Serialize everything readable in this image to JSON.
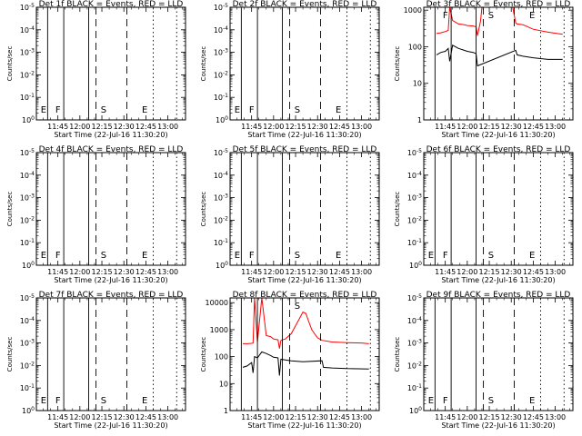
{
  "chart_data": [
    {
      "type": "line",
      "title": "Det 1f BLACK = Events, RED = LLD",
      "xlabel": "Start Time (22-Jul-16 11:30:20)",
      "ylabel": "Counts/sec",
      "x_ticks": [
        "11:45",
        "12:00",
        "12:15",
        "12:30",
        "12:45",
        "13:00"
      ],
      "y_ticks": [
        "10^0",
        "10^-1",
        "10^-2",
        "10^-3",
        "10^-4",
        "10^-5"
      ],
      "y_scale": "log",
      "markers": [
        "E",
        "F",
        "S",
        "E"
      ],
      "series": []
    },
    {
      "type": "line",
      "title": "Det 2f BLACK = Events, RED = LLD",
      "xlabel": "Start Time (22-Jul-16 11:30:20)",
      "ylabel": "Counts/sec",
      "x_ticks": [
        "11:45",
        "12:00",
        "12:15",
        "12:30",
        "12:45",
        "13:00"
      ],
      "y_ticks": [
        "10^0",
        "10^-1",
        "10^-2",
        "10^-3",
        "10^-4",
        "10^-5"
      ],
      "y_scale": "log",
      "markers": [
        "E",
        "F",
        "S",
        "E"
      ],
      "series": []
    },
    {
      "type": "line",
      "title": "Det 3f BLACK = Events, RED = LLD",
      "xlabel": "Start Time (22-Jul-16 11:30:20)",
      "ylabel": "Counts/sec",
      "x_ticks": [
        "11:45",
        "12:00",
        "12:15",
        "12:30",
        "12:45",
        "13:00"
      ],
      "y_ticks": [
        "1",
        "10",
        "100",
        "1000"
      ],
      "y_scale": "log",
      "ylim": [
        1,
        1200
      ],
      "markers": [
        "F",
        "S",
        "E"
      ],
      "series": [
        {
          "color": "#ff0000",
          "x": [
            "11:39",
            "11:42",
            "11:45",
            "11:47",
            "11:48",
            "11:50",
            "11:54",
            "11:58",
            "12:00",
            "12:04",
            "12:06",
            "12:07",
            "12:09",
            "12:10",
            "12:12",
            "12:20",
            "12:28",
            "12:31",
            "12:33",
            "12:34",
            "12:38",
            "12:45",
            "12:55",
            "13:05"
          ],
          "y": [
            230,
            240,
            260,
            280,
            1200,
            520,
            420,
            400,
            380,
            370,
            350,
            200,
            500,
            1200,
            1200,
            1200,
            1200,
            1200,
            450,
            420,
            400,
            300,
            250,
            220
          ]
        },
        {
          "color": "#000000",
          "x": [
            "11:39",
            "11:42",
            "11:45",
            "11:47",
            "11:48",
            "11:50",
            "11:54",
            "11:58",
            "12:00",
            "12:04",
            "12:06",
            "12:07",
            "12:33",
            "12:34",
            "12:38",
            "12:45",
            "12:55",
            "13:05"
          ],
          "y": [
            60,
            70,
            75,
            90,
            40,
            110,
            90,
            80,
            75,
            70,
            65,
            30,
            80,
            60,
            55,
            50,
            45,
            45
          ]
        }
      ]
    },
    {
      "type": "line",
      "title": "Det 4f BLACK = Events, RED = LLD",
      "xlabel": "Start Time (22-Jul-16 11:30:20)",
      "ylabel": "Counts/sec",
      "x_ticks": [
        "11:45",
        "12:00",
        "12:15",
        "12:30",
        "12:45",
        "13:00"
      ],
      "y_ticks": [
        "10^0",
        "10^-1",
        "10^-2",
        "10^-3",
        "10^-4",
        "10^-5"
      ],
      "y_scale": "log",
      "markers": [
        "E",
        "F",
        "S",
        "E"
      ],
      "series": []
    },
    {
      "type": "line",
      "title": "Det 5f BLACK = Events, RED = LLD",
      "xlabel": "Start Time (22-Jul-16 11:30:20)",
      "ylabel": "Counts/sec",
      "x_ticks": [
        "11:45",
        "12:00",
        "12:15",
        "12:30",
        "12:45",
        "13:00"
      ],
      "y_ticks": [
        "10^0",
        "10^-1",
        "10^-2",
        "10^-3",
        "10^-4",
        "10^-5"
      ],
      "y_scale": "log",
      "markers": [
        "E",
        "F",
        "S",
        "E"
      ],
      "series": []
    },
    {
      "type": "line",
      "title": "Det 6f BLACK = Events, RED = LLD",
      "xlabel": "Start Time (22-Jul-16 11:30:20)",
      "ylabel": "Counts/sec",
      "x_ticks": [
        "11:45",
        "12:00",
        "12:15",
        "12:30",
        "12:45",
        "13:00"
      ],
      "y_ticks": [
        "10^0",
        "10^-1",
        "10^-2",
        "10^-3",
        "10^-4",
        "10^-5"
      ],
      "y_scale": "log",
      "markers": [
        "E",
        "F",
        "S",
        "E"
      ],
      "series": []
    },
    {
      "type": "line",
      "title": "Det 7f BLACK = Events, RED = LLD",
      "xlabel": "Start Time (22-Jul-16 11:30:20)",
      "ylabel": "Counts/sec",
      "x_ticks": [
        "11:45",
        "12:00",
        "12:15",
        "12:30",
        "12:45",
        "13:00"
      ],
      "y_ticks": [
        "10^0",
        "10^-1",
        "10^-2",
        "10^-3",
        "10^-4",
        "10^-5"
      ],
      "y_scale": "log",
      "markers": [
        "E",
        "F",
        "S",
        "E"
      ],
      "series": []
    },
    {
      "type": "line",
      "title": "Det 8f BLACK = Events, RED = LLD",
      "xlabel": "Start Time (22-Jul-16 11:30:20)",
      "ylabel": "Counts/sec",
      "x_ticks": [
        "11:45",
        "12:00",
        "12:15",
        "12:30",
        "12:45",
        "13:00"
      ],
      "y_ticks": [
        "1",
        "10",
        "100",
        "1000",
        "10000"
      ],
      "y_scale": "log",
      "ylim": [
        1,
        15000
      ],
      "markers": [
        "S"
      ],
      "series": [
        {
          "color": "#ff0000",
          "x": [
            "11:39",
            "11:42",
            "11:45",
            "11:46",
            "11:47",
            "11:49",
            "11:52",
            "11:55",
            "11:58",
            "12:00",
            "12:03",
            "12:04",
            "12:05",
            "12:08",
            "12:12",
            "12:15",
            "12:18",
            "12:20",
            "12:22",
            "12:24",
            "12:26",
            "12:28",
            "12:30",
            "12:33",
            "12:40",
            "12:50",
            "13:00",
            "13:05"
          ],
          "y": [
            300,
            300,
            310,
            320,
            15000,
            350,
            15000,
            600,
            550,
            450,
            420,
            200,
            400,
            450,
            700,
            1400,
            2800,
            4500,
            4000,
            2000,
            1000,
            700,
            500,
            400,
            350,
            330,
            320,
            300
          ]
        },
        {
          "color": "#000000",
          "x": [
            "11:39",
            "11:42",
            "11:45",
            "11:46",
            "11:47",
            "11:49",
            "11:52",
            "11:55",
            "11:58",
            "12:00",
            "12:03",
            "12:04",
            "12:05",
            "12:08",
            "12:12",
            "12:20",
            "12:33",
            "12:34",
            "12:40",
            "12:50",
            "13:05"
          ],
          "y": [
            40,
            45,
            60,
            25,
            100,
            90,
            150,
            130,
            110,
            95,
            90,
            20,
            80,
            75,
            70,
            65,
            70,
            40,
            38,
            36,
            35
          ]
        }
      ]
    },
    {
      "type": "line",
      "title": "Det 9f BLACK = Events, RED = LLD",
      "xlabel": "Start Time (22-Jul-16 11:30:20)",
      "ylabel": "Counts/sec",
      "x_ticks": [
        "11:45",
        "12:00",
        "12:15",
        "12:30",
        "12:45",
        "13:00"
      ],
      "y_ticks": [
        "10^0",
        "10^-1",
        "10^-2",
        "10^-3",
        "10^-4",
        "10^-5"
      ],
      "y_scale": "log",
      "markers": [
        "E",
        "F",
        "S",
        "E"
      ],
      "series": []
    }
  ]
}
